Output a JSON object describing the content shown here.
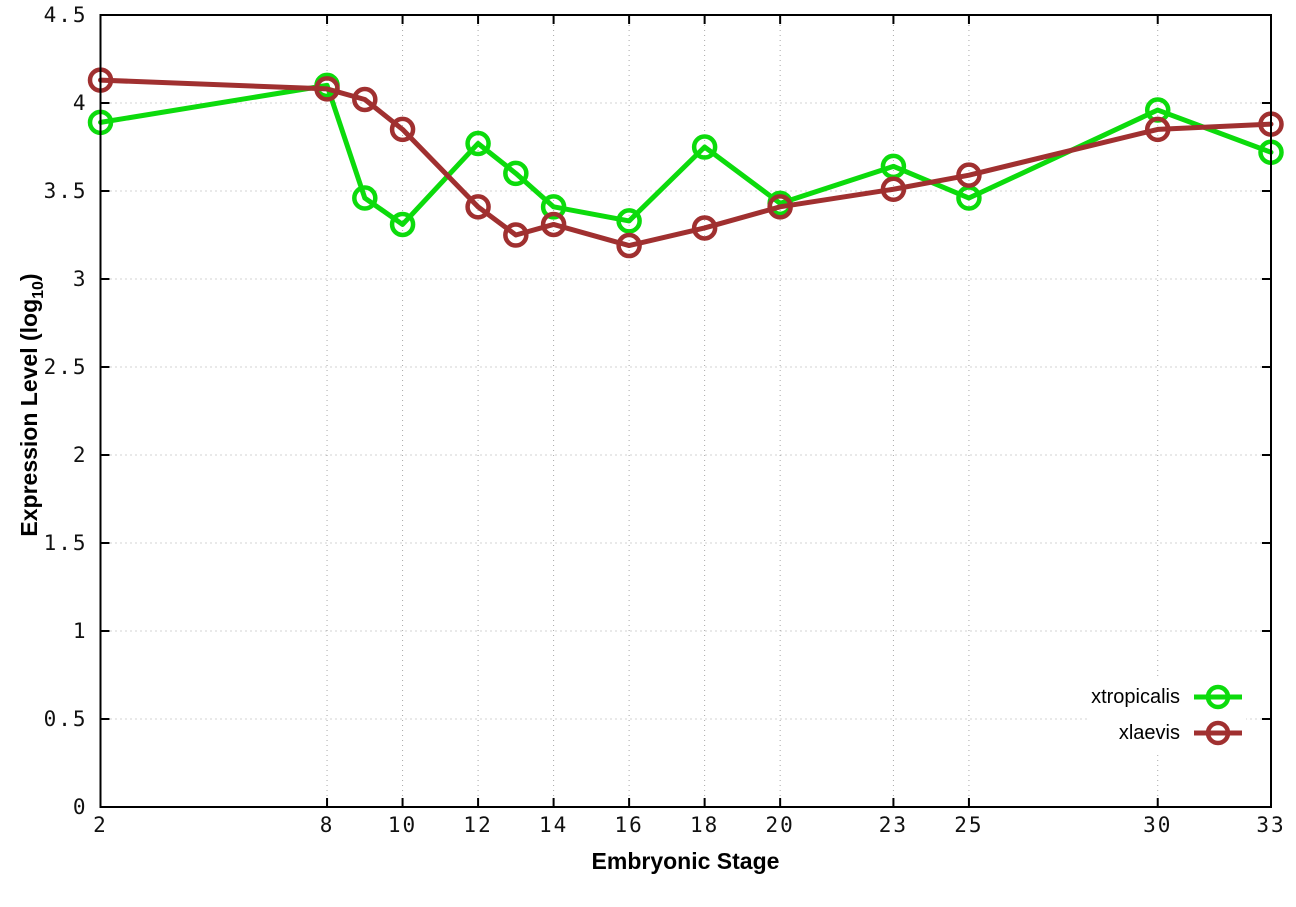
{
  "chart_data": {
    "type": "line",
    "title": "",
    "xlabel": "Embryonic Stage",
    "ylabel": "Expression Level (log10)",
    "ylabel_main": "Expression Level (log",
    "ylabel_sub": "10",
    "ylabel_close": ")",
    "x": [
      2,
      8,
      9,
      10,
      12,
      13,
      14,
      16,
      18,
      20,
      23,
      25,
      30,
      33
    ],
    "x_tick_values": [
      2,
      8,
      10,
      12,
      14,
      16,
      18,
      20,
      23,
      25,
      30,
      33
    ],
    "x_tick_labels": [
      "2",
      "8",
      "10",
      "12",
      "14",
      "16",
      "18",
      "20",
      "23",
      "25",
      "30",
      "33"
    ],
    "y_tick_values": [
      0,
      0.5,
      1,
      1.5,
      2,
      2.5,
      3,
      3.5,
      4,
      4.5
    ],
    "y_tick_labels": [
      "0",
      "0.5",
      "1",
      "1.5",
      "2",
      "2.5",
      "3",
      "3.5",
      "4",
      "4.5"
    ],
    "xlim": [
      2,
      33
    ],
    "ylim": [
      0,
      4.5
    ],
    "grid": true,
    "legend_position": "bottom-right",
    "series": [
      {
        "name": "xtropicalis",
        "color": "#0cdb0c",
        "values": [
          3.89,
          4.1,
          3.46,
          3.31,
          3.77,
          3.6,
          3.41,
          3.33,
          3.75,
          3.43,
          3.64,
          3.46,
          3.96,
          3.72
        ]
      },
      {
        "name": "xlaevis",
        "color": "#a03030",
        "values": [
          4.13,
          4.08,
          4.02,
          3.85,
          3.41,
          3.25,
          3.31,
          3.19,
          3.29,
          3.41,
          3.51,
          3.59,
          3.85,
          3.88
        ]
      }
    ],
    "style": {
      "border_color": "#000000",
      "grid_color": "#a8a8a8",
      "tick_label_color": "#111111",
      "background": "#ffffff"
    }
  }
}
